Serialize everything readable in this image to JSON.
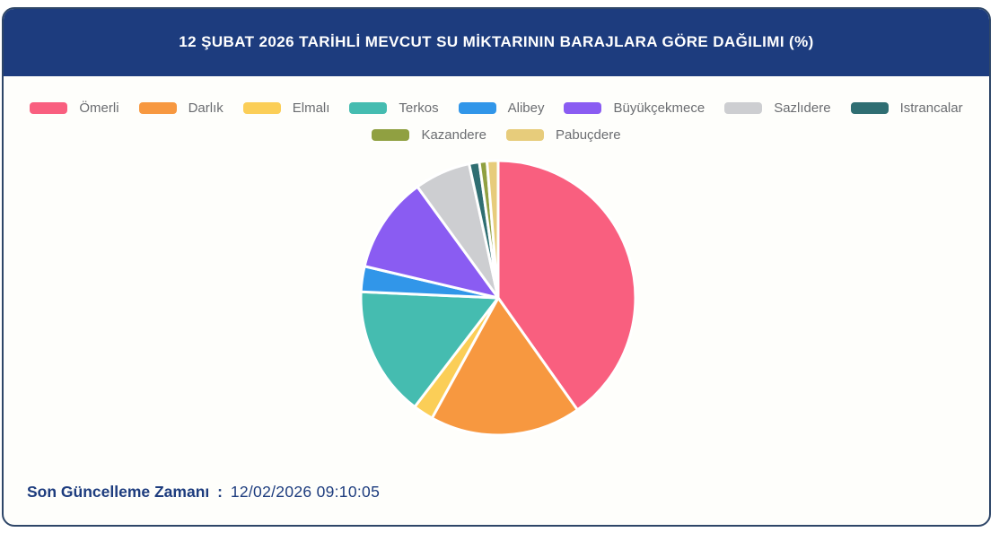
{
  "header": {
    "title": "12 ŞUBAT 2026 TARİHLİ MEVCUT SU MİKTARININ BARAJLARA GÖRE DAĞILIMI (%)",
    "background": "#1d3c7e",
    "text_color": "#ffffff"
  },
  "footer": {
    "label": "Son Güncelleme Zamanı",
    "separator": ":",
    "value": "12/02/2026 09:10:05"
  },
  "chart_data": {
    "type": "pie",
    "title": "12 ŞUBAT 2026 TARİHLİ MEVCUT SU MİKTARININ BARAJLARA GÖRE DAĞILIMI (%)",
    "unit": "%",
    "start_angle_deg": 0,
    "clockwise": true,
    "legend_position": "top",
    "legend_wrap_index": 8,
    "slice_border_color": "#ffffff",
    "series": [
      {
        "name": "Ömerli",
        "value": 40.2,
        "color": "#f95f7f"
      },
      {
        "name": "Darlık",
        "value": 17.8,
        "color": "#f79840"
      },
      {
        "name": "Elmalı",
        "value": 2.4,
        "color": "#fbce57"
      },
      {
        "name": "Terkos",
        "value": 15.3,
        "color": "#45bcb0"
      },
      {
        "name": "Alibey",
        "value": 3.0,
        "color": "#3196e9"
      },
      {
        "name": "Büyükçekmece",
        "value": 11.3,
        "color": "#8a5cf2"
      },
      {
        "name": "Sazlıdere",
        "value": 6.6,
        "color": "#cdced1"
      },
      {
        "name": "Istrancalar",
        "value": 1.2,
        "color": "#2f6e72"
      },
      {
        "name": "Kazandere",
        "value": 0.9,
        "color": "#90a041"
      },
      {
        "name": "Pabuçdere",
        "value": 1.3,
        "color": "#e7cc7b"
      }
    ]
  }
}
